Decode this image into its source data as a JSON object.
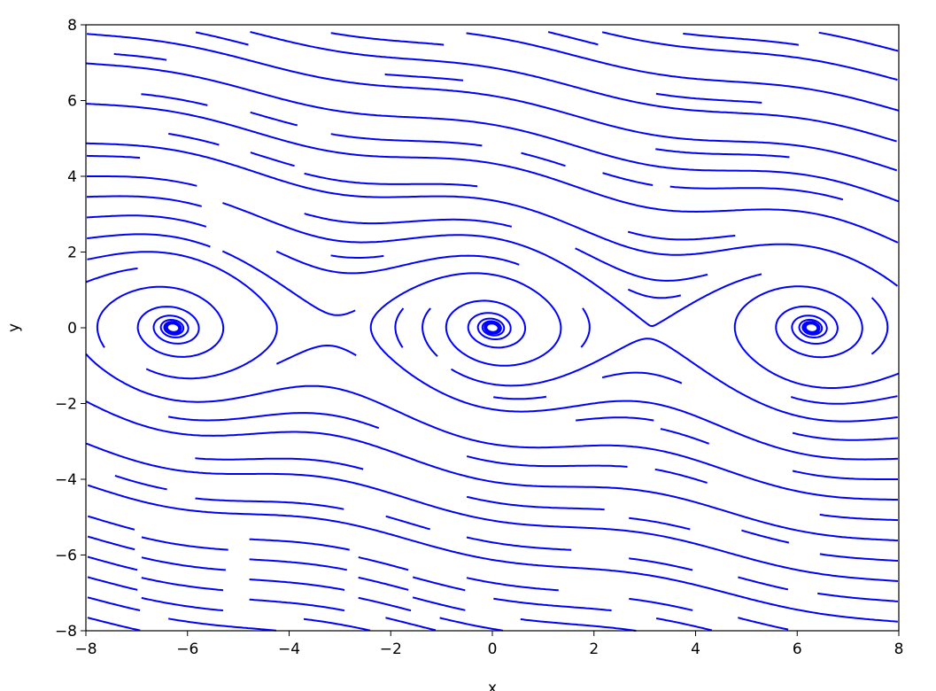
{
  "chart_data": {
    "type": "streamplot",
    "xlabel": "x",
    "ylabel": "y",
    "xlim": [
      -8,
      8
    ],
    "ylim": [
      -8,
      8
    ],
    "xticks": [
      "−8",
      "−6",
      "−4",
      "−2",
      "0",
      "2",
      "4",
      "6",
      "8"
    ],
    "yticks": [
      "−8",
      "−6",
      "−4",
      "−2",
      "0",
      "2",
      "4",
      "6",
      "8"
    ],
    "xtick_values": [
      -8,
      -6,
      -4,
      -2,
      0,
      2,
      4,
      6,
      8
    ],
    "ytick_values": [
      -8,
      -6,
      -4,
      -2,
      0,
      2,
      4,
      6,
      8
    ],
    "line_color": "#0000ff",
    "grid": false,
    "spiral_centers_x": [
      -6.28,
      0,
      6.28
    ]
  }
}
